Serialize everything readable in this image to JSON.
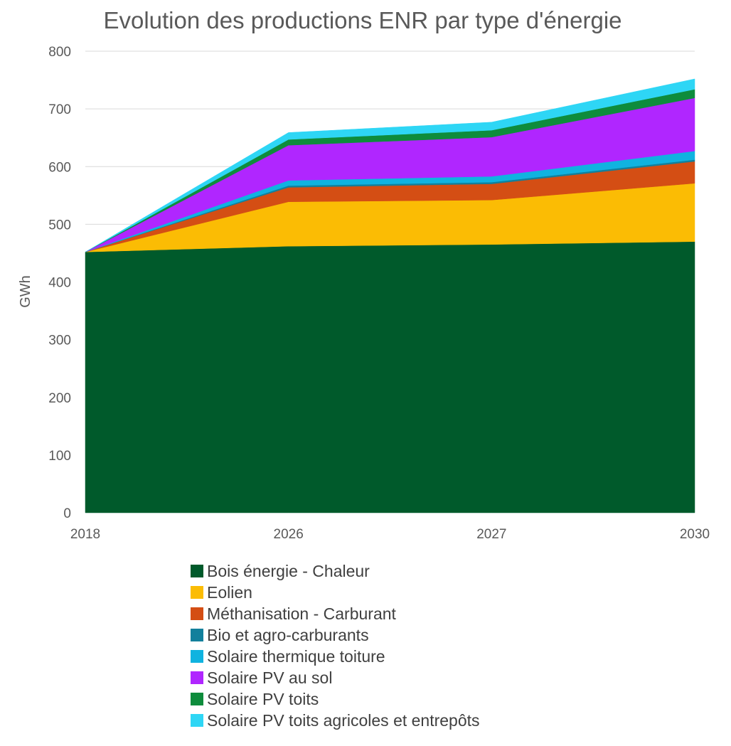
{
  "chart_data": {
    "type": "area",
    "stacked": true,
    "title": "Evolution des productions ENR par type d'énergie",
    "xlabel": "",
    "ylabel": "GWh",
    "categories": [
      "2018",
      "2026",
      "2027",
      "2030"
    ],
    "ylim": [
      0,
      800
    ],
    "yticks": [
      0,
      100,
      200,
      300,
      400,
      500,
      600,
      700,
      800
    ],
    "grid": true,
    "legend_position": "bottom",
    "series": [
      {
        "name": "Bois énergie - Chaleur",
        "color": "#005a2b",
        "values": [
          452,
          462,
          465,
          470
        ]
      },
      {
        "name": "Eolien",
        "color": "#fbbc04",
        "values": [
          0,
          77,
          77,
          101
        ]
      },
      {
        "name": "Méthanisation - Carburant",
        "color": "#d44e14",
        "values": [
          0,
          25,
          28,
          38
        ]
      },
      {
        "name": "Bio et agro-carburants",
        "color": "#12809c",
        "values": [
          0,
          3,
          3,
          3
        ]
      },
      {
        "name": "Solaire thermique toiture",
        "color": "#10b3e0",
        "values": [
          0,
          9,
          10,
          15
        ]
      },
      {
        "name": "Solaire PV au sol",
        "color": "#b026ff",
        "values": [
          0,
          61,
          68,
          92
        ]
      },
      {
        "name": "Solaire PV toits",
        "color": "#0e8c3c",
        "values": [
          0,
          10,
          12,
          15
        ]
      },
      {
        "name": "Solaire PV toits agricoles et entrepôts",
        "color": "#2ed6f5",
        "values": [
          0,
          12,
          14,
          18
        ]
      }
    ]
  }
}
